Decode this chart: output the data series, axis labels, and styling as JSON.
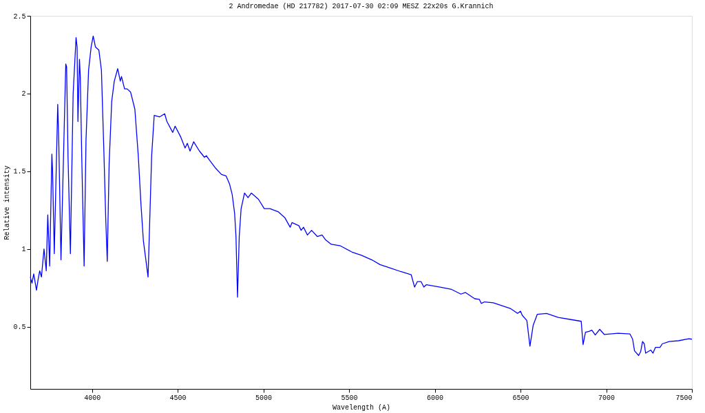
{
  "chart_data": {
    "type": "line",
    "title": "2 Andromedae (HD 217782)   2017-07-30 02:09 MESZ   22x20s   G.Krannich",
    "xlabel": "Wavelength (A)",
    "ylabel": "Relative intensity",
    "xlim": [
      3640,
      7500
    ],
    "xticks": [
      4000,
      4500,
      5000,
      5500,
      6000,
      6500,
      7000,
      7500
    ],
    "ylim": [
      0.1,
      2.5
    ],
    "yticks": [
      0.5,
      1,
      1.5,
      2,
      2.5
    ],
    "grid": false,
    "marker": "none",
    "line_style": "solid",
    "series": [
      {
        "color": "#0000ff",
        "x": [
          3640,
          3650,
          3660,
          3676,
          3685,
          3695,
          3705,
          3720,
          3733,
          3742,
          3753,
          3766,
          3770,
          3780,
          3800,
          3806,
          3819,
          3847,
          3852,
          3860,
          3874,
          3890,
          3907,
          3913,
          3918,
          3927,
          3932,
          3940,
          3954,
          3965,
          3980,
          3995,
          4007,
          4020,
          4040,
          4055,
          4070,
          4080,
          4089,
          4100,
          4115,
          4130,
          4150,
          4165,
          4172,
          4190,
          4205,
          4225,
          4250,
          4270,
          4285,
          4300,
          4312,
          4327,
          4340,
          4348,
          4363,
          4395,
          4424,
          4437,
          4471,
          4485,
          4518,
          4543,
          4556,
          4572,
          4593,
          4627,
          4656,
          4667,
          4687,
          4721,
          4755,
          4782,
          4802,
          4818,
          4832,
          4840,
          4849,
          4859,
          4870,
          4890,
          4910,
          4930,
          4971,
          5005,
          5038,
          5086,
          5126,
          5156,
          5167,
          5207,
          5220,
          5234,
          5257,
          5281,
          5315,
          5342,
          5362,
          5396,
          5450,
          5518,
          5572,
          5633,
          5680,
          5734,
          5801,
          5862,
          5882,
          5898,
          5920,
          5936,
          5950,
          6031,
          6098,
          6152,
          6179,
          6233,
          6260,
          6271,
          6290,
          6341,
          6443,
          6483,
          6500,
          6510,
          6537,
          6555,
          6574,
          6598,
          6652,
          6720,
          6800,
          6854,
          6865,
          6879,
          6900,
          6916,
          6936,
          6962,
          6989,
          7070,
          7138,
          7154,
          7165,
          7189,
          7201,
          7212,
          7222,
          7230,
          7260,
          7273,
          7287,
          7314,
          7327,
          7368,
          7422,
          7482,
          7500
        ],
        "values": [
          0.82,
          0.78,
          0.84,
          0.735,
          0.8,
          0.86,
          0.82,
          1.0,
          0.86,
          1.22,
          0.89,
          1.61,
          1.5,
          0.97,
          1.93,
          1.7,
          0.93,
          2.19,
          2.17,
          1.6,
          0.97,
          2.0,
          2.36,
          2.3,
          1.82,
          2.22,
          2.1,
          1.6,
          0.89,
          1.7,
          2.15,
          2.3,
          2.37,
          2.3,
          2.28,
          2.15,
          1.6,
          1.2,
          0.92,
          1.55,
          1.95,
          2.08,
          2.16,
          2.08,
          2.11,
          2.03,
          2.03,
          2.01,
          1.9,
          1.6,
          1.3,
          1.05,
          0.95,
          0.82,
          1.3,
          1.6,
          1.86,
          1.85,
          1.87,
          1.82,
          1.75,
          1.79,
          1.72,
          1.65,
          1.68,
          1.63,
          1.69,
          1.63,
          1.59,
          1.6,
          1.57,
          1.52,
          1.48,
          1.47,
          1.42,
          1.35,
          1.23,
          1.08,
          0.69,
          1.08,
          1.26,
          1.36,
          1.33,
          1.36,
          1.32,
          1.26,
          1.26,
          1.24,
          1.2,
          1.14,
          1.17,
          1.15,
          1.12,
          1.14,
          1.09,
          1.12,
          1.08,
          1.09,
          1.06,
          1.03,
          1.02,
          0.98,
          0.96,
          0.93,
          0.9,
          0.88,
          0.855,
          0.835,
          0.755,
          0.79,
          0.79,
          0.755,
          0.77,
          0.755,
          0.74,
          0.71,
          0.72,
          0.68,
          0.676,
          0.65,
          0.66,
          0.654,
          0.616,
          0.586,
          0.6,
          0.574,
          0.54,
          0.375,
          0.51,
          0.58,
          0.585,
          0.56,
          0.545,
          0.535,
          0.385,
          0.465,
          0.47,
          0.478,
          0.447,
          0.483,
          0.45,
          0.458,
          0.454,
          0.42,
          0.345,
          0.315,
          0.34,
          0.405,
          0.39,
          0.33,
          0.35,
          0.33,
          0.367,
          0.367,
          0.39,
          0.405,
          0.41,
          0.423,
          0.42
        ]
      }
    ]
  }
}
